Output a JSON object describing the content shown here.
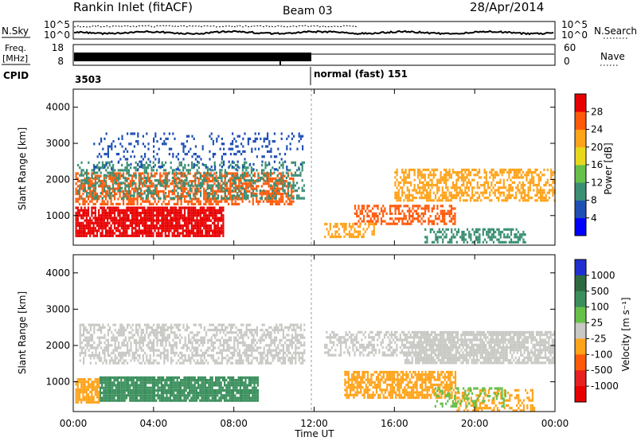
{
  "header": {
    "station": "Rankin Inlet (fitACF)",
    "beam": "Beam 03",
    "date": "28/Apr/2014"
  },
  "strips": {
    "nsky": {
      "label": "N.Sky",
      "ticks": [
        "10^5",
        "10^0"
      ]
    },
    "nsearch": {
      "label": "N.Search",
      "ticks": [
        "10^5",
        "10^0"
      ]
    },
    "freq": {
      "label_top": "Freq.",
      "label_bottom": "[MHz]",
      "ticks": [
        "18",
        "8"
      ]
    },
    "nave": {
      "label": "Nave",
      "ticks": [
        "60",
        "0"
      ]
    },
    "cpid": {
      "label": "CPID",
      "segments": [
        {
          "start_hour": 0,
          "text": "3503"
        },
        {
          "start_hour": 12,
          "text": "normal (fast) 151"
        }
      ]
    }
  },
  "chart_data": [
    {
      "type": "heatmap",
      "title": "",
      "parameter": "Power",
      "xlabel": "",
      "ylabel": "Slant Range [km]",
      "xlim": [
        0,
        24
      ],
      "ylim": [
        180,
        4500
      ],
      "x_ticks": [
        "00:00",
        "04:00",
        "08:00",
        "12:00",
        "16:00",
        "20:00",
        "00:00"
      ],
      "y_ticks": [
        1000,
        2000,
        3000,
        4000
      ],
      "colorbar": {
        "label": "Power [dB]",
        "ticks": [
          "4",
          "8",
          "12",
          "16",
          "20",
          "24",
          "28"
        ],
        "colors": [
          "#0000ff",
          "#1f4fb5",
          "#3a8f74",
          "#66c04a",
          "#e8d81c",
          "#ffa31a",
          "#ff5a0a",
          "#e80000"
        ]
      },
      "bands": [
        {
          "x_start": 0.1,
          "x_end": 7.5,
          "range_low": 450,
          "range_high": 1250,
          "color": "#e80000",
          "density": 0.85
        },
        {
          "x_start": 0.1,
          "x_end": 11.0,
          "range_low": 1300,
          "range_high": 2200,
          "color": "#ff5a0a",
          "density": 0.6
        },
        {
          "x_start": 0.2,
          "x_end": 11.5,
          "range_low": 1500,
          "range_high": 2500,
          "color": "#3a8f74",
          "density": 0.35
        },
        {
          "x_start": 16.0,
          "x_end": 24.0,
          "range_low": 1400,
          "range_high": 2300,
          "color": "#ffa31a",
          "density": 0.55
        },
        {
          "x_start": 14.0,
          "x_end": 19.0,
          "range_low": 800,
          "range_high": 1300,
          "color": "#ff5a0a",
          "density": 0.5
        },
        {
          "x_start": 12.5,
          "x_end": 15.0,
          "range_low": 400,
          "range_high": 800,
          "color": "#ffa31a",
          "density": 0.45
        },
        {
          "x_start": 17.5,
          "x_end": 22.5,
          "range_low": 250,
          "range_high": 650,
          "color": "#3a8f74",
          "density": 0.5
        },
        {
          "x_start": 1.0,
          "x_end": 11.5,
          "range_low": 2300,
          "range_high": 3300,
          "color": "#1f4fb5",
          "density": 0.15
        }
      ]
    },
    {
      "type": "heatmap",
      "title": "",
      "parameter": "Velocity",
      "xlabel": "Time UT",
      "ylabel": "Slant Range [km]",
      "xlim": [
        0,
        24
      ],
      "ylim": [
        180,
        4500
      ],
      "x_ticks": [
        "00:00",
        "04:00",
        "08:00",
        "12:00",
        "16:00",
        "20:00",
        "00:00"
      ],
      "y_ticks": [
        1000,
        2000,
        3000,
        4000
      ],
      "colorbar": {
        "label": "Velocity [m s⁻¹]",
        "ticks": [
          "1000",
          "500",
          "100",
          "25",
          "-25",
          "-100",
          "-500",
          "-1000"
        ],
        "colors": [
          "#2030d0",
          "#2e6a40",
          "#3a8f5c",
          "#66c04a",
          "#c8c8c4",
          "#ffa31a",
          "#ff5a0a",
          "#e82020",
          "#e80000"
        ]
      },
      "bands": [
        {
          "x_start": 0.3,
          "x_end": 11.5,
          "range_low": 1500,
          "range_high": 2600,
          "color": "#c8c8c4",
          "density": 0.55
        },
        {
          "x_start": 16.5,
          "x_end": 24.0,
          "range_low": 1500,
          "range_high": 2400,
          "color": "#c8c8c4",
          "density": 0.8
        },
        {
          "x_start": 12.5,
          "x_end": 16.5,
          "range_low": 1700,
          "range_high": 2400,
          "color": "#c8c8c4",
          "density": 0.5
        },
        {
          "x_start": 1.3,
          "x_end": 9.2,
          "range_low": 450,
          "range_high": 1150,
          "color": "#3a8f5c",
          "density": 0.9
        },
        {
          "x_start": 0.1,
          "x_end": 1.3,
          "range_low": 400,
          "range_high": 1100,
          "color": "#ffa31a",
          "density": 0.85
        },
        {
          "x_start": 13.5,
          "x_end": 19.0,
          "range_low": 550,
          "range_high": 1300,
          "color": "#ffa31a",
          "density": 0.7
        },
        {
          "x_start": 19.0,
          "x_end": 23.0,
          "range_low": 200,
          "range_high": 800,
          "color": "#ffa31a",
          "density": 0.45
        },
        {
          "x_start": 18.0,
          "x_end": 21.5,
          "range_low": 350,
          "range_high": 850,
          "color": "#66c04a",
          "density": 0.35
        }
      ]
    }
  ]
}
